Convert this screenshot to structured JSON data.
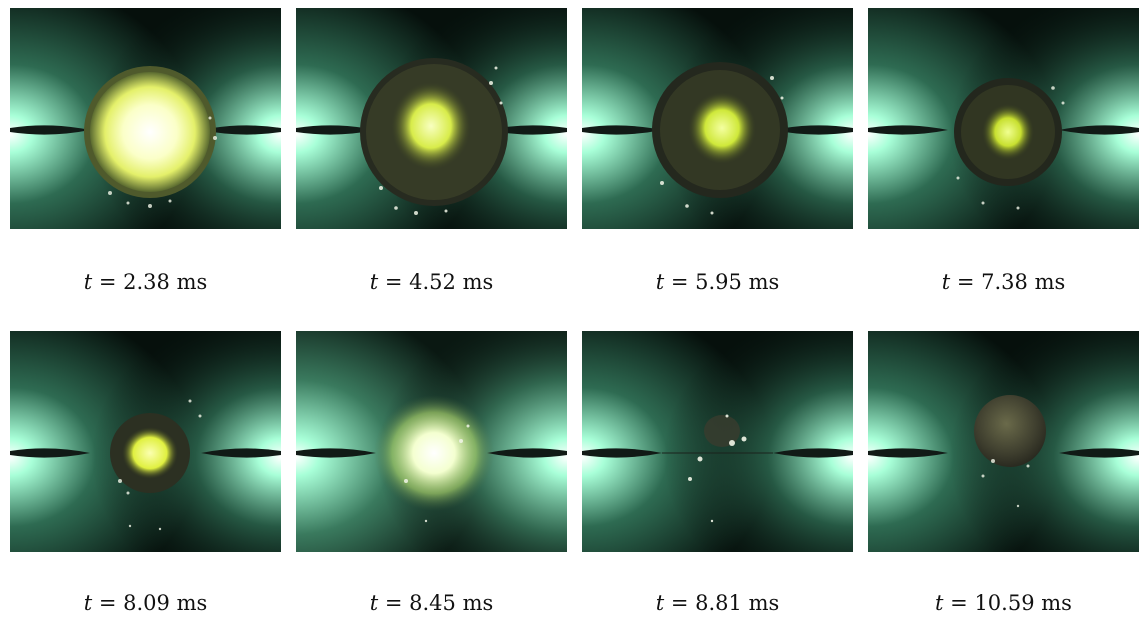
{
  "frames": [
    {
      "time": "2.38",
      "unit": "ms",
      "var": "t"
    },
    {
      "time": "4.52",
      "unit": "ms",
      "var": "t"
    },
    {
      "time": "5.95",
      "unit": "ms",
      "var": "t"
    },
    {
      "time": "7.38",
      "unit": "ms",
      "var": "t"
    },
    {
      "time": "8.09",
      "unit": "ms",
      "var": "t"
    },
    {
      "time": "8.45",
      "unit": "ms",
      "var": "t"
    },
    {
      "time": "8.81",
      "unit": "ms",
      "var": "t"
    },
    {
      "time": "10.59",
      "unit": "ms",
      "var": "t"
    }
  ],
  "colors": {
    "background": "#ffffff",
    "glow": "#9ff7d2",
    "flame": "#eaff6a",
    "shell": "#2a2e22"
  }
}
